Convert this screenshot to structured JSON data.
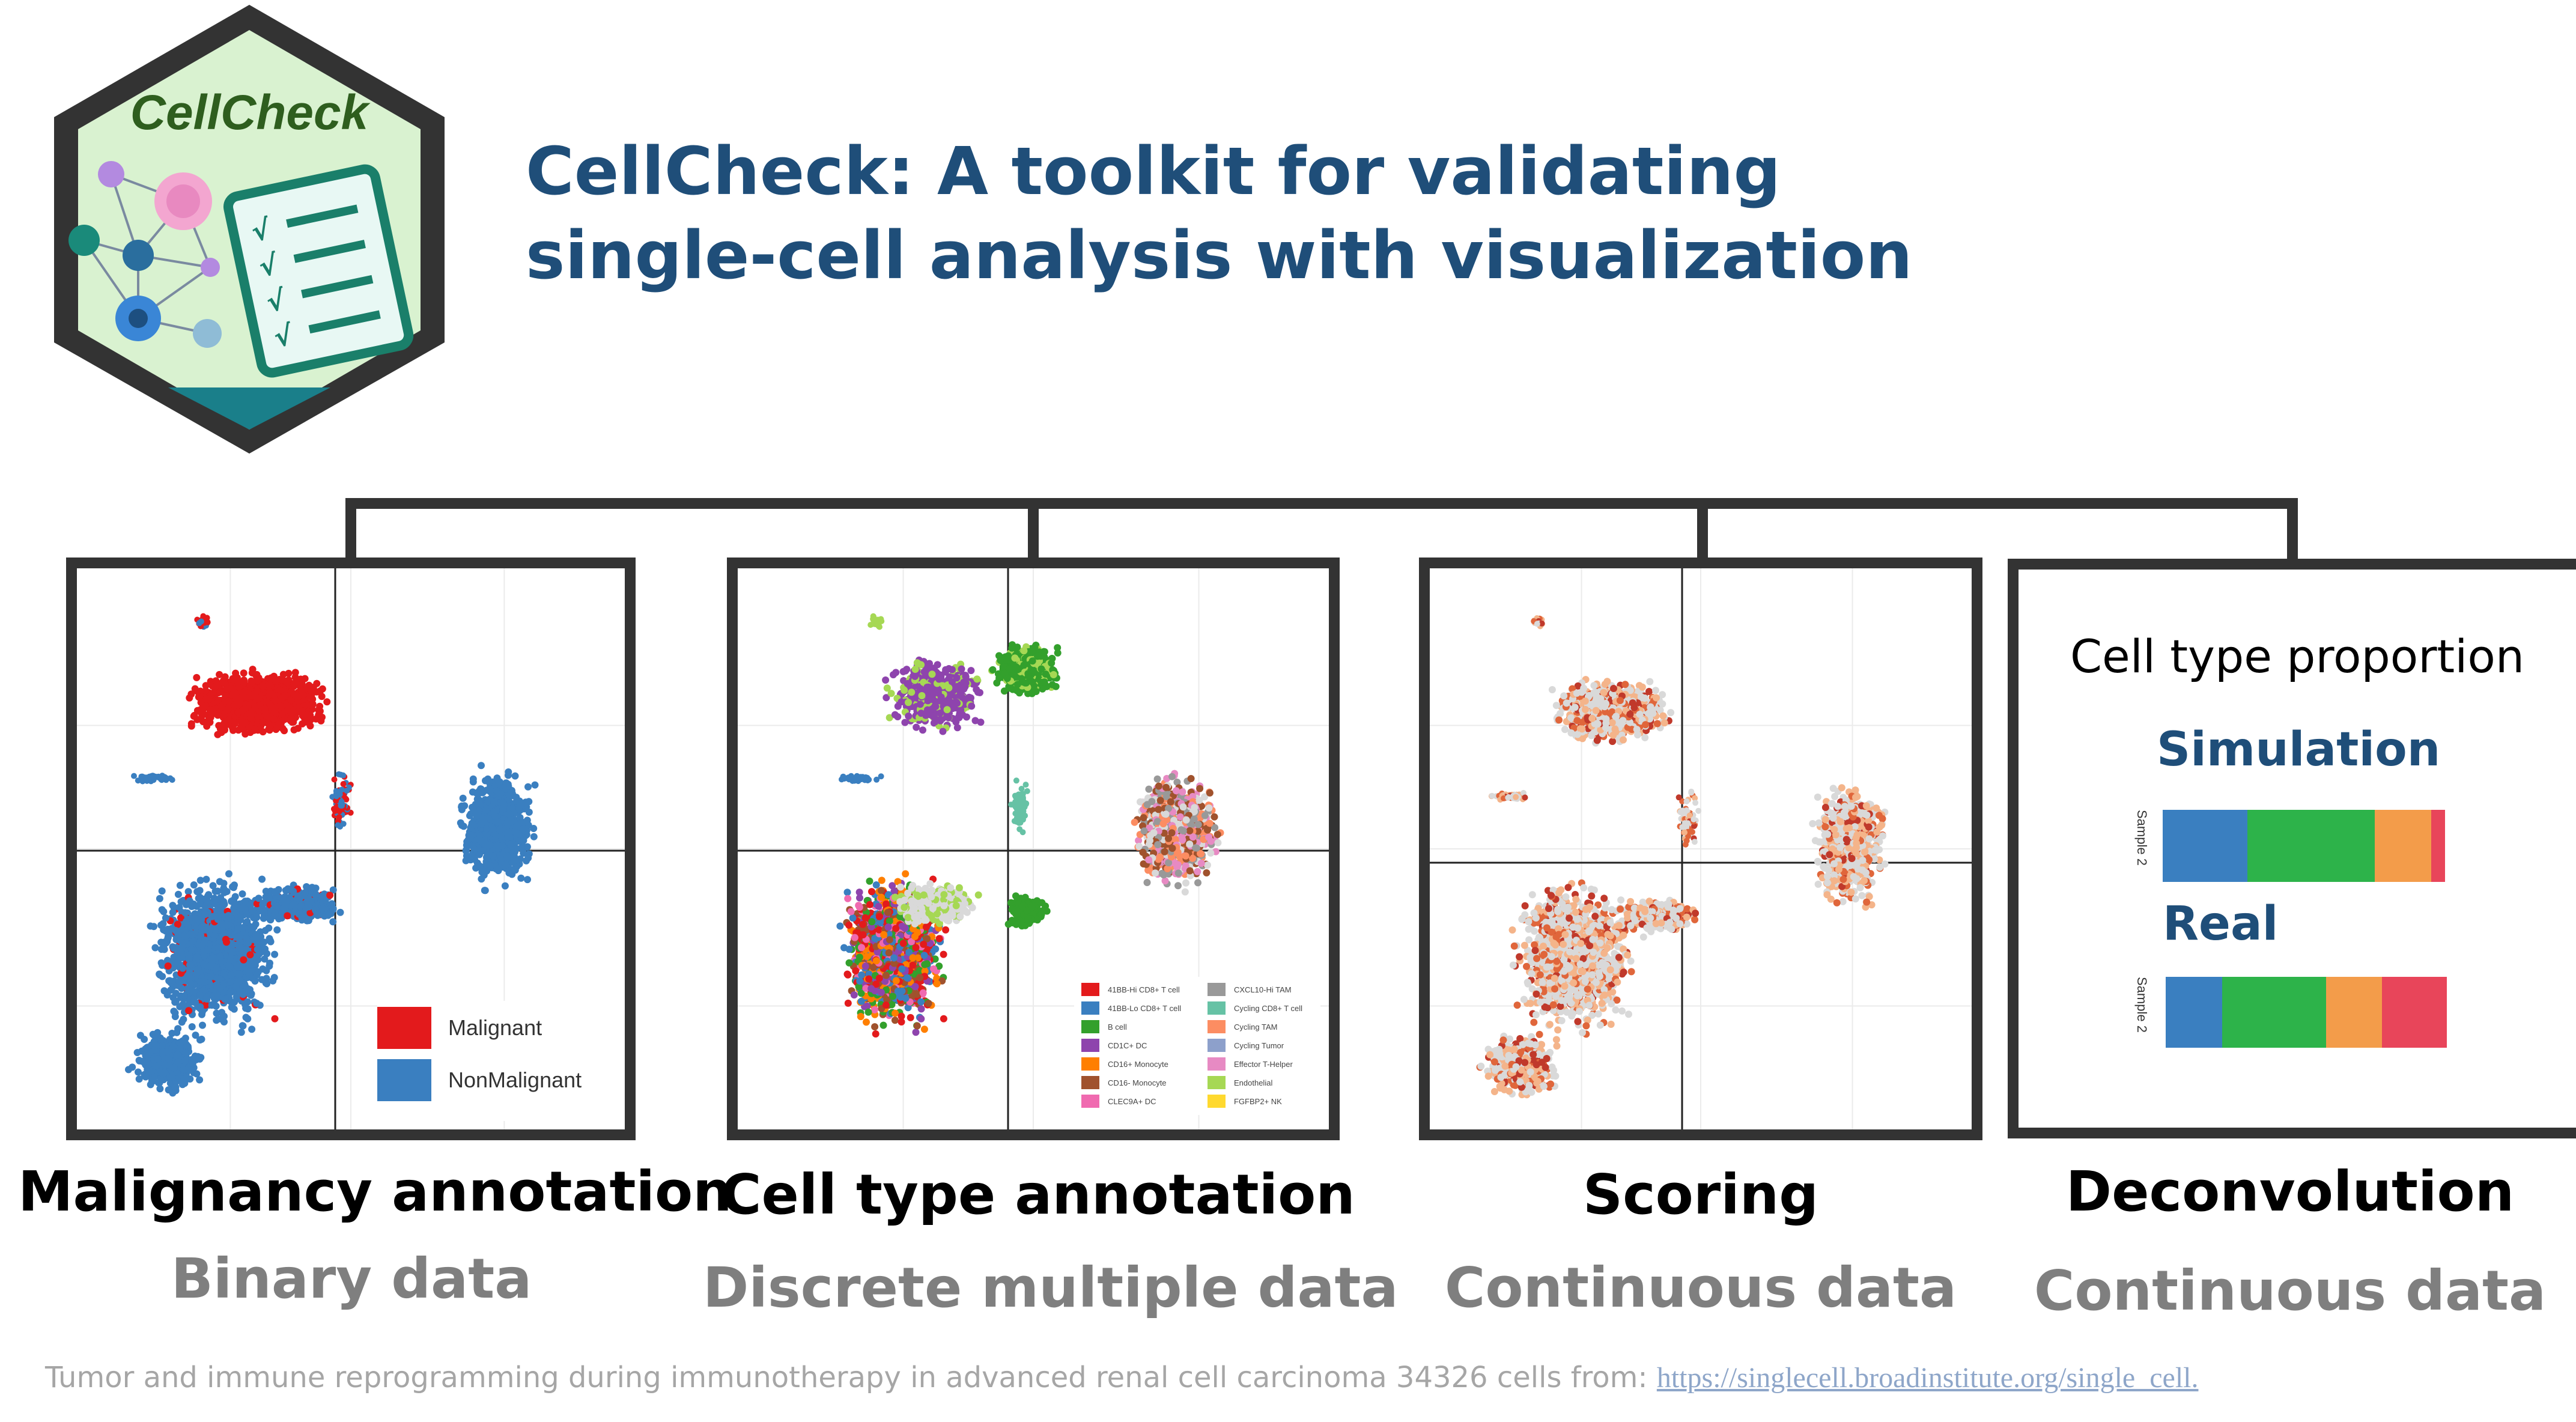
{
  "logo": {
    "text": "CellCheck"
  },
  "title": {
    "line1": "CellCheck: A toolkit for validating",
    "line2": "single-cell analysis with visualization"
  },
  "panels": [
    {
      "caption": "Malignancy annotation",
      "subcaption": "Binary data",
      "legend": [
        {
          "label": "Malignant",
          "color": "#e31a1c"
        },
        {
          "label": "NonMalignant",
          "color": "#3a7fc0"
        }
      ]
    },
    {
      "caption": "Cell type annotation",
      "subcaption": "Discrete multiple data",
      "legend_col1": [
        {
          "label": "41BB-Hi CD8+ T cell",
          "color": "#e31a1c"
        },
        {
          "label": "41BB-Lo CD8+ T cell",
          "color": "#3a7fc0"
        },
        {
          "label": "B cell",
          "color": "#33a02c"
        },
        {
          "label": "CD1C+ DC",
          "color": "#8e44ad"
        },
        {
          "label": "CD16+ Monocyte",
          "color": "#ff7f00"
        },
        {
          "label": "CD16- Monocyte",
          "color": "#a0522d"
        },
        {
          "label": "CLEC9A+ DC",
          "color": "#f06ab0"
        }
      ],
      "legend_col2": [
        {
          "label": "CXCL10-Hi TAM",
          "color": "#999999"
        },
        {
          "label": "Cycling CD8+ T cell",
          "color": "#66c2a5"
        },
        {
          "label": "Cycling TAM",
          "color": "#fc8d62"
        },
        {
          "label": "Cycling Tumor",
          "color": "#8da0cb"
        },
        {
          "label": "Effector T-Helper",
          "color": "#e78ac3"
        },
        {
          "label": "Endothelial",
          "color": "#a6d854"
        },
        {
          "label": "FGFBP2+ NK",
          "color": "#ffd92f"
        }
      ]
    },
    {
      "caption": "Scoring",
      "subcaption": "Continuous data"
    },
    {
      "caption": "Deconvolution",
      "subcaption": "Continuous data",
      "box_title": "Cell type proportion",
      "simulation_label": "Simulation",
      "real_label": "Real",
      "sample_label": "Sample 2",
      "simulation_bar": [
        {
          "value": 0.3,
          "color": "#3a7fc0"
        },
        {
          "value": 0.45,
          "color": "#2db34a"
        },
        {
          "value": 0.2,
          "color": "#f39c4a"
        },
        {
          "value": 0.05,
          "color": "#e8455a"
        }
      ],
      "real_bar": [
        {
          "value": 0.2,
          "color": "#3a7fc0"
        },
        {
          "value": 0.37,
          "color": "#2db34a"
        },
        {
          "value": 0.2,
          "color": "#f39c4a"
        },
        {
          "value": 0.23,
          "color": "#e8455a"
        }
      ]
    }
  ],
  "footnote": {
    "text": "Tumor and immune reprogramming during immunotherapy in advanced renal cell carcinoma 34326 cells from: ",
    "link": "https://singlecell.broadinstitute.org/single_cell."
  }
}
